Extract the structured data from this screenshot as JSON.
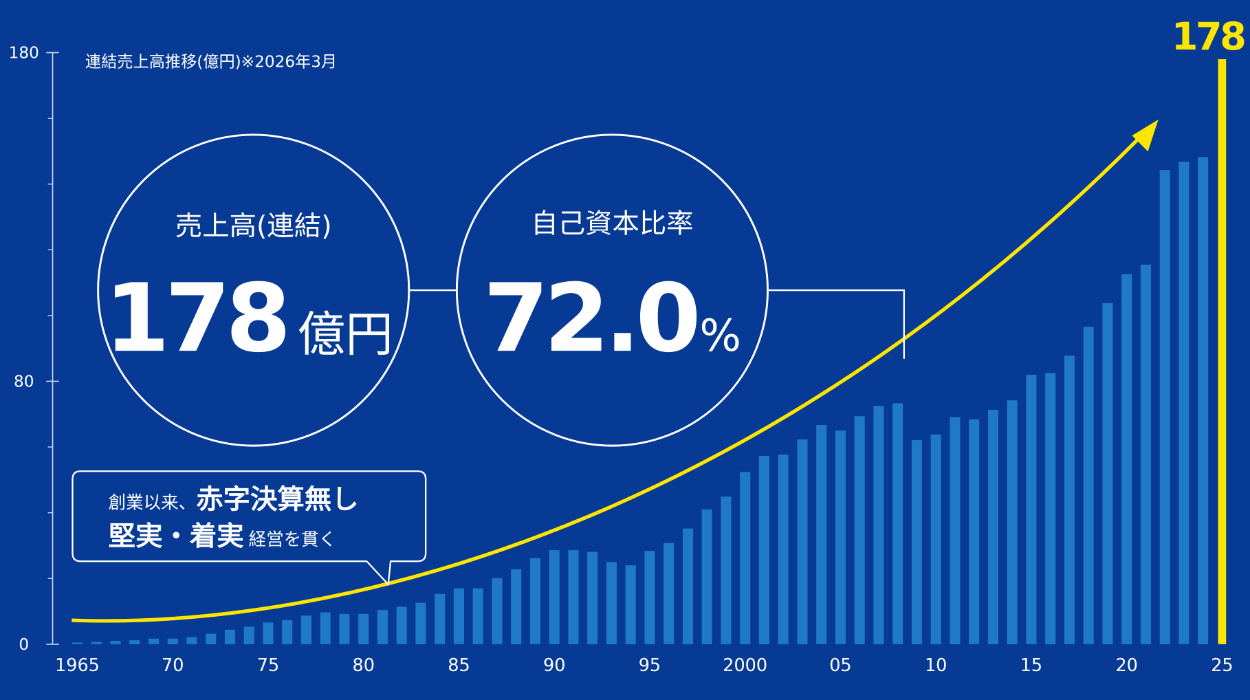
{
  "chart_data": {
    "type": "bar",
    "title": "連結売上高推移(億円)※2026年3月",
    "x": [
      1965,
      1966,
      1967,
      1968,
      1969,
      1970,
      1971,
      1972,
      1973,
      1974,
      1975,
      1976,
      1977,
      1978,
      1979,
      1980,
      1981,
      1982,
      1983,
      1984,
      1985,
      1986,
      1987,
      1988,
      1989,
      1990,
      1991,
      1992,
      1993,
      1994,
      1995,
      1996,
      1997,
      1998,
      1999,
      2000,
      2001,
      2002,
      2003,
      2004,
      2005,
      2006,
      2007,
      2008,
      2009,
      2010,
      2011,
      2012,
      2013,
      2014,
      2015,
      2016,
      2017,
      2018,
      2019,
      2020,
      2021,
      2022,
      2023,
      2024,
      2025
    ],
    "values": [
      0.5,
      0.7,
      1,
      1.2,
      1.7,
      1.7,
      2.2,
      3.2,
      4.4,
      5.3,
      6.6,
      7.3,
      8.7,
      9.7,
      9.2,
      9.2,
      10.4,
      11.4,
      12.6,
      15.3,
      17,
      17,
      20.1,
      22.8,
      26.2,
      28.6,
      28.6,
      28.1,
      25,
      24,
      28.4,
      30.8,
      35.2,
      41,
      44.9,
      52.4,
      57.3,
      57.7,
      62.3,
      66.7,
      65,
      69.4,
      72.5,
      73.3,
      62.1,
      63.8,
      69.1,
      68.4,
      71.3,
      74.2,
      82,
      82.5,
      87.8,
      96.6,
      103.8,
      112.6,
      115.5,
      144.3,
      146.8,
      148.2,
      178
    ],
    "colors": [
      "#1f78c8",
      "#1f78c8",
      "#1f78c8",
      "#1f78c8",
      "#1f78c8",
      "#1f78c8",
      "#1f78c8",
      "#1f78c8",
      "#1f78c8",
      "#1f78c8",
      "#1f78c8",
      "#1f78c8",
      "#1f78c8",
      "#1f78c8",
      "#1f78c8",
      "#1f78c8",
      "#1f78c8",
      "#1f78c8",
      "#1f78c8",
      "#1f78c8",
      "#1f78c8",
      "#1f78c8",
      "#1f78c8",
      "#1f78c8",
      "#1f78c8",
      "#1f78c8",
      "#1f78c8",
      "#1f78c8",
      "#1f78c8",
      "#1f78c8",
      "#1f78c8",
      "#1f78c8",
      "#1f78c8",
      "#1f78c8",
      "#1f78c8",
      "#1f78c8",
      "#1f78c8",
      "#1f78c8",
      "#1f78c8",
      "#1f78c8",
      "#1f78c8",
      "#1f78c8",
      "#1f78c8",
      "#1f78c8",
      "#1f78c8",
      "#1f78c8",
      "#1f78c8",
      "#1f78c8",
      "#1f78c8",
      "#1f78c8",
      "#1f78c8",
      "#1f78c8",
      "#1f78c8",
      "#1f78c8",
      "#1f78c8",
      "#1f78c8",
      "#1f78c8",
      "#1f78c8",
      "#1f78c8",
      "#1f78c8",
      "#ffe600"
    ],
    "xlim": [
      1965,
      2025
    ],
    "xticks": [
      1965,
      {
        "value": 1970,
        "label": "70"
      },
      {
        "value": 1975,
        "label": "75"
      },
      {
        "value": 1980,
        "label": "80"
      },
      {
        "value": 1985,
        "label": "85"
      },
      {
        "value": 1990,
        "label": "90"
      },
      {
        "value": 1995,
        "label": "95"
      },
      2000,
      {
        "value": 2005,
        "label": "05"
      },
      {
        "value": 2010,
        "label": "10"
      },
      {
        "value": 2015,
        "label": "15"
      },
      {
        "value": 2020,
        "label": "20"
      },
      {
        "value": 2025,
        "label": "25"
      }
    ],
    "ylim": [
      0,
      180
    ],
    "yticks": [
      0,
      80,
      180
    ],
    "yminor_ticks": [
      20,
      40,
      60,
      100,
      120,
      140,
      160
    ],
    "annotations": {
      "sales_label": "売上高(連結)",
      "sales_value": "178",
      "sales_unit": "億円",
      "equity_label": "自己資本比率",
      "equity_value": "72.0",
      "equity_unit": "%",
      "callout_1a": "創業以来、",
      "callout_1b": "赤字決算無し",
      "callout_2a": "堅実・着実",
      "callout_2b": "経営を貫く"
    }
  }
}
